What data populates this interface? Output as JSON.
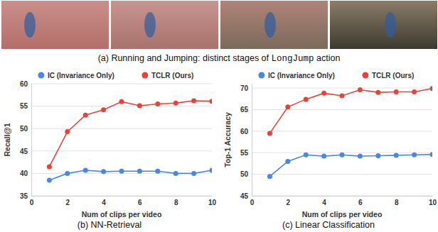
{
  "figure_a": {
    "caption_start": "(a) Running and Jumping: distinct stages of ",
    "caption_code": "LongJump",
    "caption_end": " action"
  },
  "chart_data": [
    {
      "type": "line",
      "title": "(b) NN-Retrieval",
      "x_label": "Num of clips per video",
      "y_label": "Recall@1",
      "x": [
        1,
        2,
        3,
        4,
        5,
        6,
        7,
        8,
        9,
        10
      ],
      "series": [
        {
          "name": "IC (Invariance Only)",
          "color": "#4a86e8",
          "marker": "circle",
          "values": [
            38.5,
            40.0,
            40.7,
            40.4,
            40.5,
            40.5,
            40.5,
            40.0,
            40.0,
            40.7
          ]
        },
        {
          "name": "TCLR (Ours)",
          "color": "#e8433a",
          "marker": "circle",
          "values": [
            41.5,
            49.3,
            53.0,
            54.2,
            56.0,
            55.1,
            55.5,
            55.7,
            56.2,
            56.1
          ]
        }
      ],
      "xlim": [
        0,
        10
      ],
      "xticks": [
        0,
        2,
        4,
        6,
        8,
        10
      ],
      "ylim": [
        35,
        60
      ],
      "yticks": [
        35,
        40,
        45,
        50,
        55,
        60
      ],
      "grid": true,
      "legend": "top"
    },
    {
      "type": "line",
      "title": "(c) Linear Classification",
      "x_label": "Num of clips per video",
      "y_label": "Top-1 Accuracy",
      "x": [
        1,
        2,
        3,
        4,
        5,
        6,
        7,
        8,
        9,
        10
      ],
      "series": [
        {
          "name": "IC (Invariance Only)",
          "color": "#4a86e8",
          "marker": "circle",
          "values": [
            49.5,
            53.0,
            54.5,
            54.2,
            54.5,
            54.2,
            54.3,
            54.4,
            54.5,
            54.6
          ]
        },
        {
          "name": "TCLR (Ours)",
          "color": "#e8433a",
          "marker": "circle",
          "values": [
            59.5,
            65.6,
            67.4,
            68.8,
            68.2,
            69.6,
            69.0,
            69.1,
            69.1,
            69.9
          ]
        }
      ],
      "xlim": [
        0,
        10
      ],
      "xticks": [
        0,
        2,
        4,
        6,
        8,
        10
      ],
      "ylim": [
        45,
        71
      ],
      "yticks": [
        45,
        50,
        55,
        60,
        65,
        70
      ],
      "grid": true,
      "legend": "top"
    }
  ]
}
